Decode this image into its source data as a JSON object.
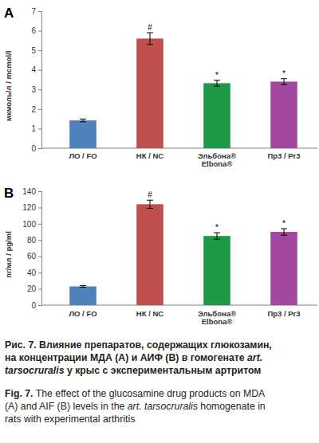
{
  "chart_data": [
    {
      "type": "bar",
      "title": "A",
      "y_label": "мкмоль/л / mcmol/l",
      "categories": [
        "ЛО / FO",
        "НК / NC",
        "Эльбона®\nElbona®",
        "Пр3 / Pr3"
      ],
      "values": [
        1.42,
        5.6,
        3.32,
        3.4
      ],
      "errors": [
        0.07,
        0.3,
        0.15,
        0.15
      ],
      "significance": [
        null,
        "#",
        "*",
        "*"
      ],
      "colors": [
        "#4f81bd",
        "#c0504d",
        "#1e9a46",
        "#a4479e"
      ],
      "ylim": [
        0,
        7
      ],
      "yticks": [
        0,
        1,
        2,
        3,
        4,
        5,
        6,
        7
      ],
      "grid": false
    },
    {
      "type": "bar",
      "title": "B",
      "y_label": "пг/мл / pg/ml",
      "categories": [
        "ЛО / FO",
        "НК / NC",
        "Эльбона®\nElbona®",
        "Пр3 / Pr3"
      ],
      "values": [
        23,
        124,
        85,
        90
      ],
      "errors": [
        1,
        5,
        4,
        4
      ],
      "significance": [
        null,
        "#",
        "*",
        "*"
      ],
      "colors": [
        "#4f81bd",
        "#c0504d",
        "#1e9a46",
        "#a4479e"
      ],
      "ylim": [
        0,
        140
      ],
      "yticks": [
        0,
        20,
        40,
        60,
        80,
        100,
        120,
        140
      ],
      "grid": false
    }
  ],
  "caption": {
    "lines": [
      [
        {
          "text": "Рис. 7.",
          "font": "bold"
        },
        {
          "text": " Влияние препаратов, содержащих глюкозамин,",
          "font": "bold"
        }
      ],
      [
        {
          "text": "на концентрации МДА (А) и АИФ (В) в гомогенате ",
          "font": "bold"
        },
        {
          "text": "art.",
          "font": "bold-italic"
        }
      ],
      [
        {
          "text": "tarsocruralis",
          "font": "bold-italic"
        },
        {
          "text": " у крыс с экспериментальным артритом",
          "font": "bold"
        }
      ],
      [
        {
          "text": "Fig. 7.",
          "font": "bold"
        },
        {
          "text": " The effect of the glucosamine drug products on MDA",
          "font": "normal"
        }
      ],
      [
        {
          "text": "(A) and AIF (B) levels in the ",
          "font": "normal"
        },
        {
          "text": "art. tarsocruralis",
          "font": "italic"
        },
        {
          "text": " homogenate in",
          "font": "normal"
        }
      ],
      [
        {
          "text": "rats with experimental arthritis",
          "font": "normal"
        }
      ]
    ]
  }
}
